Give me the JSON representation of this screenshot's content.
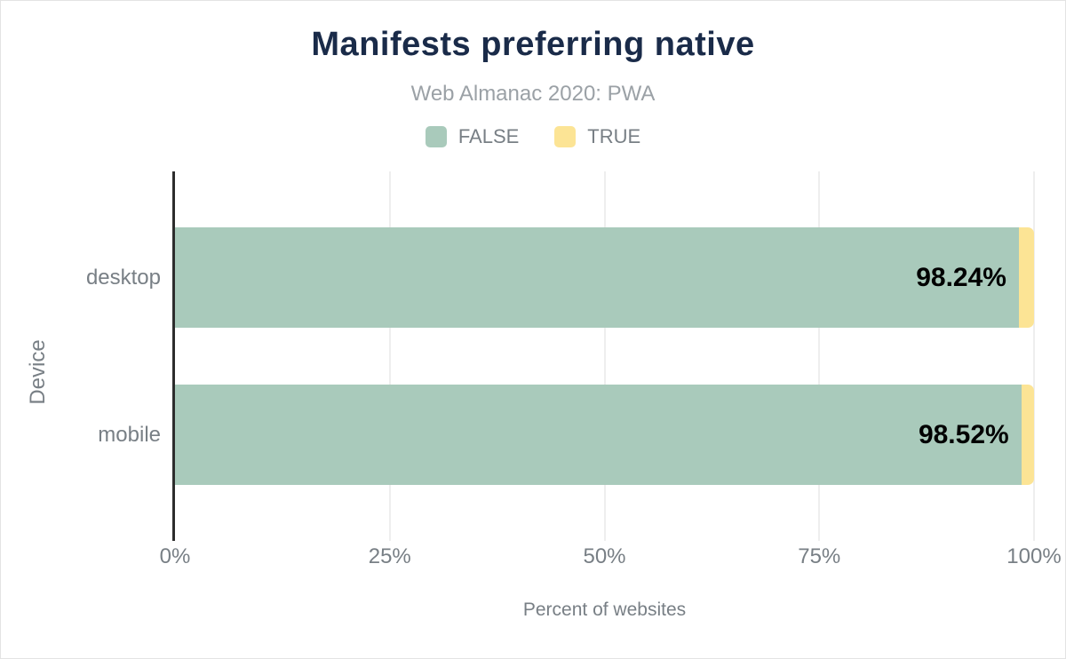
{
  "title": "Manifests preferring native",
  "subtitle": "Web Almanac 2020: PWA",
  "legend": {
    "items": [
      {
        "label": "FALSE",
        "color": "#a9cabb"
      },
      {
        "label": "TRUE",
        "color": "#fce495"
      }
    ]
  },
  "chart_data": {
    "type": "bar",
    "orientation": "horizontal",
    "stacked": true,
    "title": "Manifests preferring native",
    "subtitle": "Web Almanac 2020: PWA",
    "categories": [
      "desktop",
      "mobile"
    ],
    "series": [
      {
        "name": "FALSE",
        "color": "#a9cabb",
        "values": [
          98.24,
          98.52
        ]
      },
      {
        "name": "TRUE",
        "color": "#fce495",
        "values": [
          1.76,
          1.48
        ]
      }
    ],
    "value_labels": [
      "98.24%",
      "98.52%"
    ],
    "xlabel": "Percent of websites",
    "ylabel": "Device",
    "x_ticks": [
      "0%",
      "25%",
      "50%",
      "75%",
      "100%"
    ],
    "xlim": [
      0,
      100
    ],
    "grid": true,
    "legend_position": "top"
  },
  "colors": {
    "title": "#1a2b49",
    "subtitle": "#9ba1a6",
    "axis_text": "#787f85",
    "value_label": "#000000",
    "axis_line": "#2d2d2d",
    "gridline": "#eeeeee",
    "background": "#ffffff"
  }
}
